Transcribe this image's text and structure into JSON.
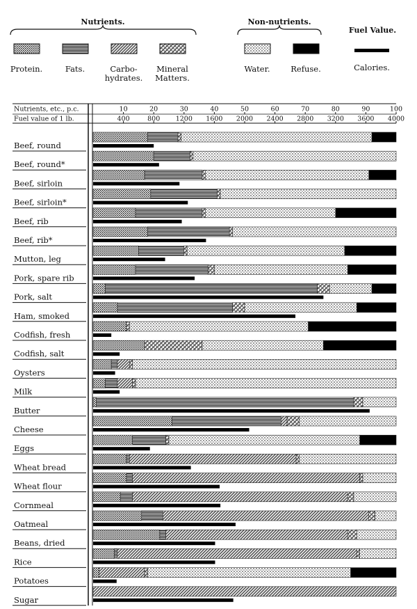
{
  "legend_groups": {
    "nutrients": "Nutrients.",
    "non_nutrients": "Non-nutrients.",
    "fuel": "Fuel Value."
  },
  "chart_data": {
    "type": "bar",
    "orientation": "horizontal",
    "stacked": true,
    "xlabel": "Nutrients, etc., p.c.",
    "x2label": "Fuel value of 1 lb.",
    "xlim": [
      0,
      100
    ],
    "xticks": [
      10,
      20,
      30,
      40,
      50,
      60,
      70,
      80,
      90,
      100
    ],
    "x2lim": [
      0,
      4000
    ],
    "x2ticks": [
      400,
      800,
      1200,
      1600,
      2000,
      2400,
      2800,
      3200,
      3600,
      4000
    ],
    "categories": [
      "Beef, round",
      "Beef, round*",
      "Beef, sirloin",
      "Beef, sirloin*",
      "Beef, rib",
      "Beef, rib*",
      "Mutton, leg",
      "Pork, spare rib",
      "Pork, salt",
      "Ham, smoked",
      "Codfish, fresh",
      "Codfish, salt",
      "Oysters",
      "Milk",
      "Butter",
      "Cheese",
      "Eggs",
      "Wheat bread",
      "Wheat flour",
      "Cornmeal",
      "Oatmeal",
      "Beans, dried",
      "Rice",
      "Potatoes",
      "Sugar"
    ],
    "series": [
      {
        "name": "Protein.",
        "values": [
          18,
          20,
          17,
          19,
          14,
          18,
          15,
          14,
          4,
          8,
          11,
          17,
          6,
          4,
          1,
          26,
          13,
          11,
          11,
          9,
          16,
          22,
          7,
          2,
          0
        ]
      },
      {
        "name": "Fats.",
        "values": [
          10,
          12,
          19,
          22,
          22,
          27,
          15,
          24,
          70,
          38,
          0,
          0,
          2,
          4,
          85,
          36,
          11,
          1,
          2,
          4,
          7,
          2,
          1,
          0,
          0
        ]
      },
      {
        "name": "Carbo- hydrates.",
        "values": [
          0,
          0,
          0,
          0,
          0,
          0,
          0,
          0,
          0,
          0,
          0,
          0,
          4,
          5,
          0,
          2,
          0,
          55,
          75,
          71,
          68,
          60,
          79,
          15,
          100
        ]
      },
      {
        "name": "Mineral Matters.",
        "values": [
          1,
          1,
          1,
          1,
          1,
          1,
          1,
          2,
          4,
          4,
          1,
          19,
          1,
          1,
          3,
          4,
          1,
          1,
          1,
          2,
          2,
          3,
          1,
          1,
          0
        ]
      },
      {
        "name": "Water.",
        "values": [
          63,
          67,
          54,
          58,
          43,
          54,
          52,
          44,
          14,
          37,
          59,
          40,
          87,
          86,
          11,
          32,
          63,
          32,
          11,
          14,
          7,
          13,
          12,
          67,
          0
        ]
      },
      {
        "name": "Refuse.",
        "values": [
          8,
          0,
          9,
          0,
          20,
          0,
          17,
          16,
          8,
          13,
          29,
          24,
          0,
          0,
          0,
          0,
          12,
          0,
          0,
          0,
          0,
          0,
          0,
          15,
          0
        ]
      },
      {
        "name": "Calories.",
        "axis": "x2",
        "values": [
          800,
          870,
          1140,
          1250,
          1170,
          1490,
          950,
          1340,
          3040,
          2670,
          240,
          350,
          290,
          350,
          3650,
          2060,
          750,
          1290,
          1670,
          1680,
          1880,
          1610,
          1610,
          310,
          1850
        ]
      }
    ]
  }
}
